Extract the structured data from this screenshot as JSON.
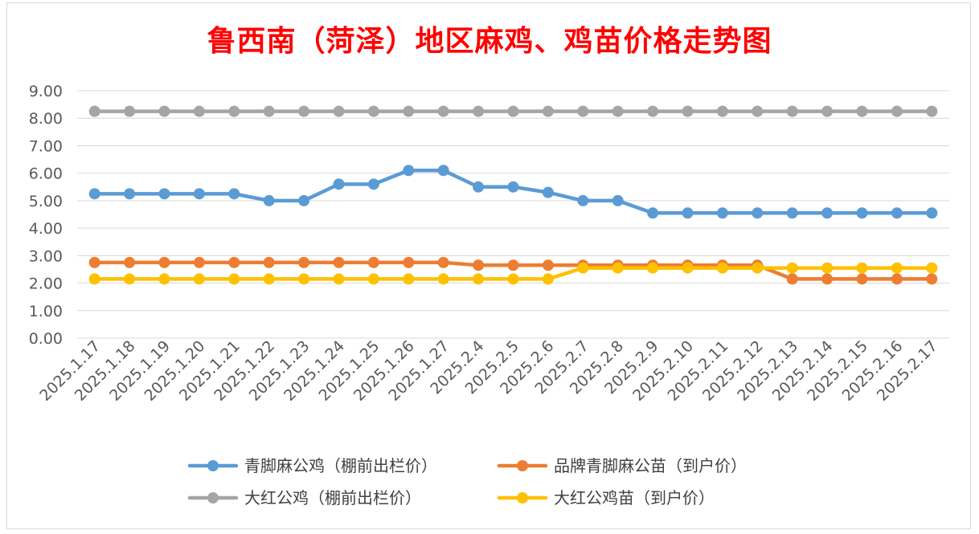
{
  "chart_data": {
    "type": "line",
    "title": "鲁西南（菏泽）地区麻鸡、鸡苗价格走势图",
    "categories": [
      "2025.1.17",
      "2025.1.18",
      "2025.1.19",
      "2025.1.20",
      "2025.1.21",
      "2025.1.22",
      "2025.1.23",
      "2025.1.24",
      "2025.1.25",
      "2025.1.26",
      "2025.1.27",
      "2025.2.4",
      "2025.2.5",
      "2025.2.6",
      "2025.2.7",
      "2025.2.8",
      "2025.2.9",
      "2025.2.10",
      "2025.2.11",
      "2025.2.12",
      "2025.2.13",
      "2025.2.14",
      "2025.2.15",
      "2025.2.16",
      "2025.2.17"
    ],
    "y_ticks": [
      "0.00",
      "1.00",
      "2.00",
      "3.00",
      "4.00",
      "5.00",
      "6.00",
      "7.00",
      "8.00",
      "9.00"
    ],
    "ylim": [
      0,
      9
    ],
    "grid": true,
    "legend_position": "bottom",
    "series": [
      {
        "name": "青脚麻公鸡（棚前出栏价）",
        "color": "#5b9bd5",
        "values": [
          5.25,
          5.25,
          5.25,
          5.25,
          5.25,
          5.0,
          5.0,
          5.6,
          5.6,
          6.1,
          6.1,
          5.5,
          5.5,
          5.3,
          5.0,
          5.0,
          4.55,
          4.55,
          4.55,
          4.55,
          4.55,
          4.55,
          4.55,
          4.55,
          4.55
        ]
      },
      {
        "name": "品牌青脚麻公苗（到户价）",
        "color": "#ed7d31",
        "values": [
          2.75,
          2.75,
          2.75,
          2.75,
          2.75,
          2.75,
          2.75,
          2.75,
          2.75,
          2.75,
          2.75,
          2.65,
          2.65,
          2.65,
          2.65,
          2.65,
          2.65,
          2.65,
          2.65,
          2.65,
          2.15,
          2.15,
          2.15,
          2.15,
          2.15
        ]
      },
      {
        "name": "大红公鸡（棚前出栏价）",
        "color": "#a5a5a5",
        "values": [
          8.25,
          8.25,
          8.25,
          8.25,
          8.25,
          8.25,
          8.25,
          8.25,
          8.25,
          8.25,
          8.25,
          8.25,
          8.25,
          8.25,
          8.25,
          8.25,
          8.25,
          8.25,
          8.25,
          8.25,
          8.25,
          8.25,
          8.25,
          8.25,
          8.25
        ]
      },
      {
        "name": "大红公鸡苗（到户价）",
        "color": "#ffc000",
        "values": [
          2.15,
          2.15,
          2.15,
          2.15,
          2.15,
          2.15,
          2.15,
          2.15,
          2.15,
          2.15,
          2.15,
          2.15,
          2.15,
          2.15,
          2.55,
          2.55,
          2.55,
          2.55,
          2.55,
          2.55,
          2.55,
          2.55,
          2.55,
          2.55,
          2.55
        ]
      }
    ]
  }
}
